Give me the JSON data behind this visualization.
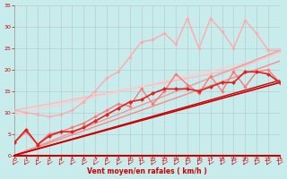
{
  "xlabel": "Vent moyen/en rafales ( km/h )",
  "xlim": [
    0,
    23
  ],
  "ylim": [
    0,
    35
  ],
  "xticks": [
    0,
    1,
    2,
    3,
    4,
    5,
    6,
    7,
    8,
    9,
    10,
    11,
    12,
    13,
    14,
    15,
    16,
    17,
    18,
    19,
    20,
    21,
    22,
    23
  ],
  "yticks": [
    0,
    5,
    10,
    15,
    20,
    25,
    30,
    35
  ],
  "bg_color": "#c8ecec",
  "grid_color": "#aaaaaa",
  "series": [
    {
      "comment": "light pink straight line from ~10.5 at x=0 to ~24 at x=23 (no markers)",
      "x": [
        0,
        1,
        2,
        3,
        4,
        5,
        6,
        7,
        8,
        9,
        10,
        11,
        12,
        13,
        14,
        15,
        16,
        17,
        18,
        19,
        20,
        21,
        22,
        23
      ],
      "y": [
        10.5,
        11.0,
        11.5,
        12.0,
        12.5,
        13.0,
        13.5,
        14.0,
        14.5,
        15.0,
        15.5,
        16.0,
        16.5,
        17.0,
        17.5,
        18.0,
        18.5,
        19.0,
        19.5,
        20.0,
        21.0,
        22.0,
        23.0,
        24.0
      ],
      "color": "#ffbbbb",
      "lw": 1.1,
      "marker": null
    },
    {
      "comment": "light pink straight line from ~9.5 at x=0 to ~24 at x=23 slightly lower (no markers)",
      "x": [
        0,
        1,
        2,
        3,
        4,
        5,
        6,
        7,
        8,
        9,
        10,
        11,
        12,
        13,
        14,
        15,
        16,
        17,
        18,
        19,
        20,
        21,
        22,
        23
      ],
      "y": [
        9.5,
        10.1,
        10.7,
        11.3,
        11.9,
        12.5,
        13.1,
        13.7,
        14.3,
        14.9,
        15.5,
        16.1,
        16.7,
        17.3,
        17.9,
        18.5,
        19.1,
        19.7,
        20.3,
        20.9,
        21.5,
        22.1,
        23.0,
        24.0
      ],
      "color": "#ffcccc",
      "lw": 1.0,
      "marker": null
    },
    {
      "comment": "light pink with diamonds - wiggly upper line starting ~10, peaking ~32",
      "x": [
        0,
        1,
        2,
        3,
        4,
        5,
        6,
        7,
        8,
        9,
        10,
        11,
        12,
        13,
        14,
        15,
        16,
        17,
        18,
        19,
        20,
        21,
        22,
        23
      ],
      "y": [
        10.5,
        10.0,
        9.5,
        9.0,
        9.5,
        10.5,
        12.5,
        15.0,
        18.0,
        19.5,
        23.0,
        26.5,
        27.0,
        28.5,
        26.0,
        32.0,
        25.0,
        32.0,
        29.0,
        25.0,
        31.5,
        28.5,
        24.5,
        24.5
      ],
      "color": "#ffaaaa",
      "lw": 1.0,
      "marker": "D",
      "ms": 2.2
    },
    {
      "comment": "medium pink straight line from 0 to ~24 (slightly steeper than pink)",
      "x": [
        0,
        23
      ],
      "y": [
        0,
        24.5
      ],
      "color": "#ee9999",
      "lw": 1.0,
      "marker": null
    },
    {
      "comment": "medium red/pink with diamonds - mid wavy line, starts ~3 goes to ~17",
      "x": [
        0,
        1,
        2,
        3,
        4,
        5,
        6,
        7,
        8,
        9,
        10,
        11,
        12,
        13,
        14,
        15,
        16,
        17,
        18,
        19,
        20,
        21,
        22,
        23
      ],
      "y": [
        3.0,
        5.5,
        2.5,
        5.0,
        5.5,
        6.5,
        7.5,
        9.0,
        10.5,
        12.0,
        11.5,
        15.5,
        12.0,
        15.0,
        19.0,
        16.5,
        14.5,
        18.5,
        15.0,
        19.5,
        16.0,
        19.5,
        20.0,
        17.0
      ],
      "color": "#ff7777",
      "lw": 1.0,
      "marker": "D",
      "ms": 2.2
    },
    {
      "comment": "medium pink straight line from 0 steeper, going to ~22 at x=23",
      "x": [
        0,
        23
      ],
      "y": [
        0,
        22.0
      ],
      "color": "#ff8888",
      "lw": 1.0,
      "marker": null
    },
    {
      "comment": "dark red with diamonds - starts ~3, ends ~17, mid wavy",
      "x": [
        0,
        1,
        2,
        3,
        4,
        5,
        6,
        7,
        8,
        9,
        10,
        11,
        12,
        13,
        14,
        15,
        16,
        17,
        18,
        19,
        20,
        21,
        22,
        23
      ],
      "y": [
        3.0,
        6.0,
        2.5,
        4.5,
        5.5,
        5.5,
        6.5,
        8.0,
        9.5,
        11.0,
        12.5,
        13.0,
        14.5,
        15.5,
        15.5,
        15.5,
        15.0,
        16.0,
        17.0,
        17.0,
        19.5,
        19.5,
        19.0,
        17.0
      ],
      "color": "#dd2222",
      "lw": 1.2,
      "marker": "D",
      "ms": 2.5
    },
    {
      "comment": "dark red straight line from 0 to ~17 at x=23",
      "x": [
        0,
        23
      ],
      "y": [
        0,
        17.0
      ],
      "color": "#cc0000",
      "lw": 1.2,
      "marker": null
    },
    {
      "comment": "dark red straight line slightly steeper from 0 to ~17.5",
      "x": [
        0,
        23
      ],
      "y": [
        0,
        17.5
      ],
      "color": "#cc0000",
      "lw": 1.0,
      "marker": null
    }
  ],
  "arrow_color": "#cc0000",
  "axis_color": "#cc0000",
  "tick_color": "#cc0000",
  "xlabel_color": "#cc0000"
}
